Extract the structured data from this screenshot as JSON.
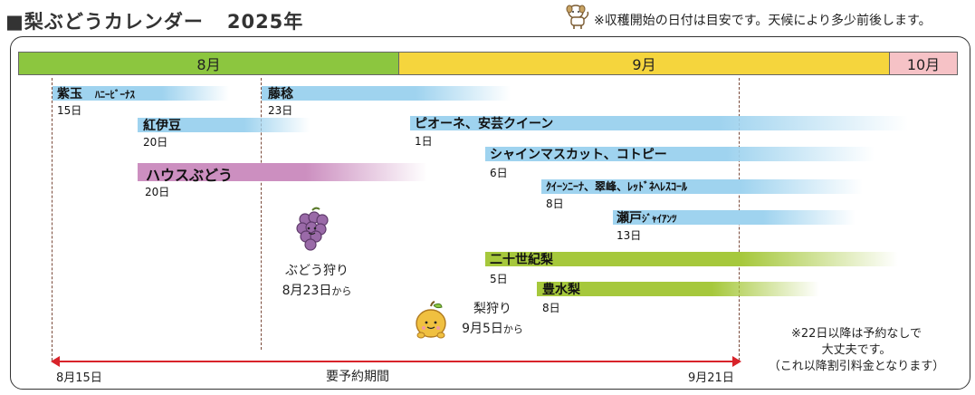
{
  "header": {
    "title": "■梨ぶどうカレンダー",
    "year": "2025年",
    "note": "※収穫開始の日付は目安です。天候により多少前後します。"
  },
  "months": [
    "8月",
    "9月",
    "10月"
  ],
  "varieties": [
    {
      "name": "紫玉",
      "sub": "ﾊﾆｰﾋﾞｰﾅｽ",
      "day": "15日"
    },
    {
      "name": "藤稔",
      "day": "23日"
    },
    {
      "name": "紅伊豆",
      "day": "20日"
    },
    {
      "name": "ピオーネ、安芸クイーン",
      "day": "1日"
    },
    {
      "name": "ハウスぶどう",
      "day": "20日"
    },
    {
      "name": "シャインマスカット、コトピー",
      "day": "6日"
    },
    {
      "name": "ｸｲｰﾝﾆｰﾅ、翠峰、ﾚｯﾄﾞﾈﾍﾚｽｺｰﾙ",
      "day": "8日"
    },
    {
      "name": "瀬戸",
      "sub": "ｼﾞｬｲｱﾝﾂ",
      "day": "13日"
    },
    {
      "name": "二十世紀梨",
      "day": "5日"
    },
    {
      "name": "豊水梨",
      "day": "8日"
    }
  ],
  "grape_picking": {
    "title": "ぶどう狩り",
    "date": "8月23日",
    "suffix": "から"
  },
  "pear_picking": {
    "title": "梨狩り",
    "date": "9月5日",
    "suffix": "から"
  },
  "notice": {
    "line1": "※22日以降は予約なしで",
    "line2": "大丈夫です。",
    "line3": "（これ以降割引料金となります）"
  },
  "reservation": {
    "start": "8月15日",
    "label": "要予約期間",
    "end": "9月21日"
  },
  "colors": {
    "august": "#8cc63f",
    "september": "#f5d53d",
    "october": "#f6c2c6",
    "grape_bar": "#9fd3ef",
    "house_bar": "#cc8fc0",
    "pear_bar": "#a6c83c",
    "arrow": "#d8232a"
  }
}
